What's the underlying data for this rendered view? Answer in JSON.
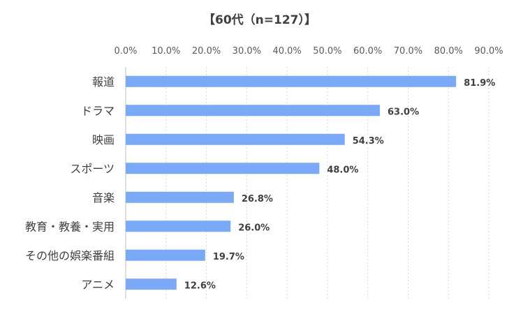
{
  "chart_data": {
    "type": "bar",
    "orientation": "horizontal",
    "title": "【60代（n=127）】",
    "categories": [
      "報道",
      "ドラマ",
      "映画",
      "スポーツ",
      "音楽",
      "教育・教養・実用",
      "その他の娯楽番組",
      "アニメ"
    ],
    "values": [
      81.9,
      63.0,
      54.3,
      48.0,
      26.8,
      26.0,
      19.7,
      12.6
    ],
    "value_labels": [
      "81.9%",
      "63.0%",
      "54.3%",
      "48.0%",
      "26.8%",
      "26.0%",
      "19.7%",
      "12.6%"
    ],
    "xlim": [
      0,
      90
    ],
    "xticks": [
      0,
      10,
      20,
      30,
      40,
      50,
      60,
      70,
      80,
      90
    ],
    "xtick_labels": [
      "0.0%",
      "10.0%",
      "20.0%",
      "30.0%",
      "40.0%",
      "50.0%",
      "60.0%",
      "70.0%",
      "80.0%",
      "90.0%"
    ],
    "axis_position": "top",
    "grid": true,
    "bar_color": "#7aa9f7"
  }
}
